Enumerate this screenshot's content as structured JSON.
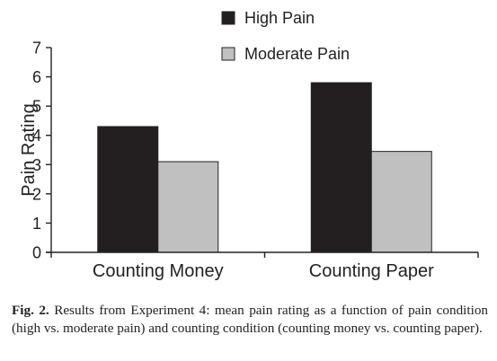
{
  "chart_data": {
    "type": "bar",
    "ylabel": "Pain Rating",
    "xlabel": "",
    "ylim": [
      0,
      7
    ],
    "yticks": [
      0,
      1,
      2,
      3,
      4,
      5,
      6,
      7
    ],
    "categories": [
      "Counting Money",
      "Counting Paper"
    ],
    "series": [
      {
        "name": "High Pain",
        "values": [
          4.3,
          5.8
        ],
        "color": "#231f20"
      },
      {
        "name": "Moderate Pain",
        "values": [
          3.1,
          3.45
        ],
        "color": "#c0c0c0"
      }
    ],
    "legend_position": "top",
    "grid": false
  },
  "caption": {
    "label": "Fig. 2.",
    "text": "Results from Experiment 4: mean pain rating as a function of pain condition (high vs. moderate pain) and counting condition (counting money vs. counting paper)."
  }
}
